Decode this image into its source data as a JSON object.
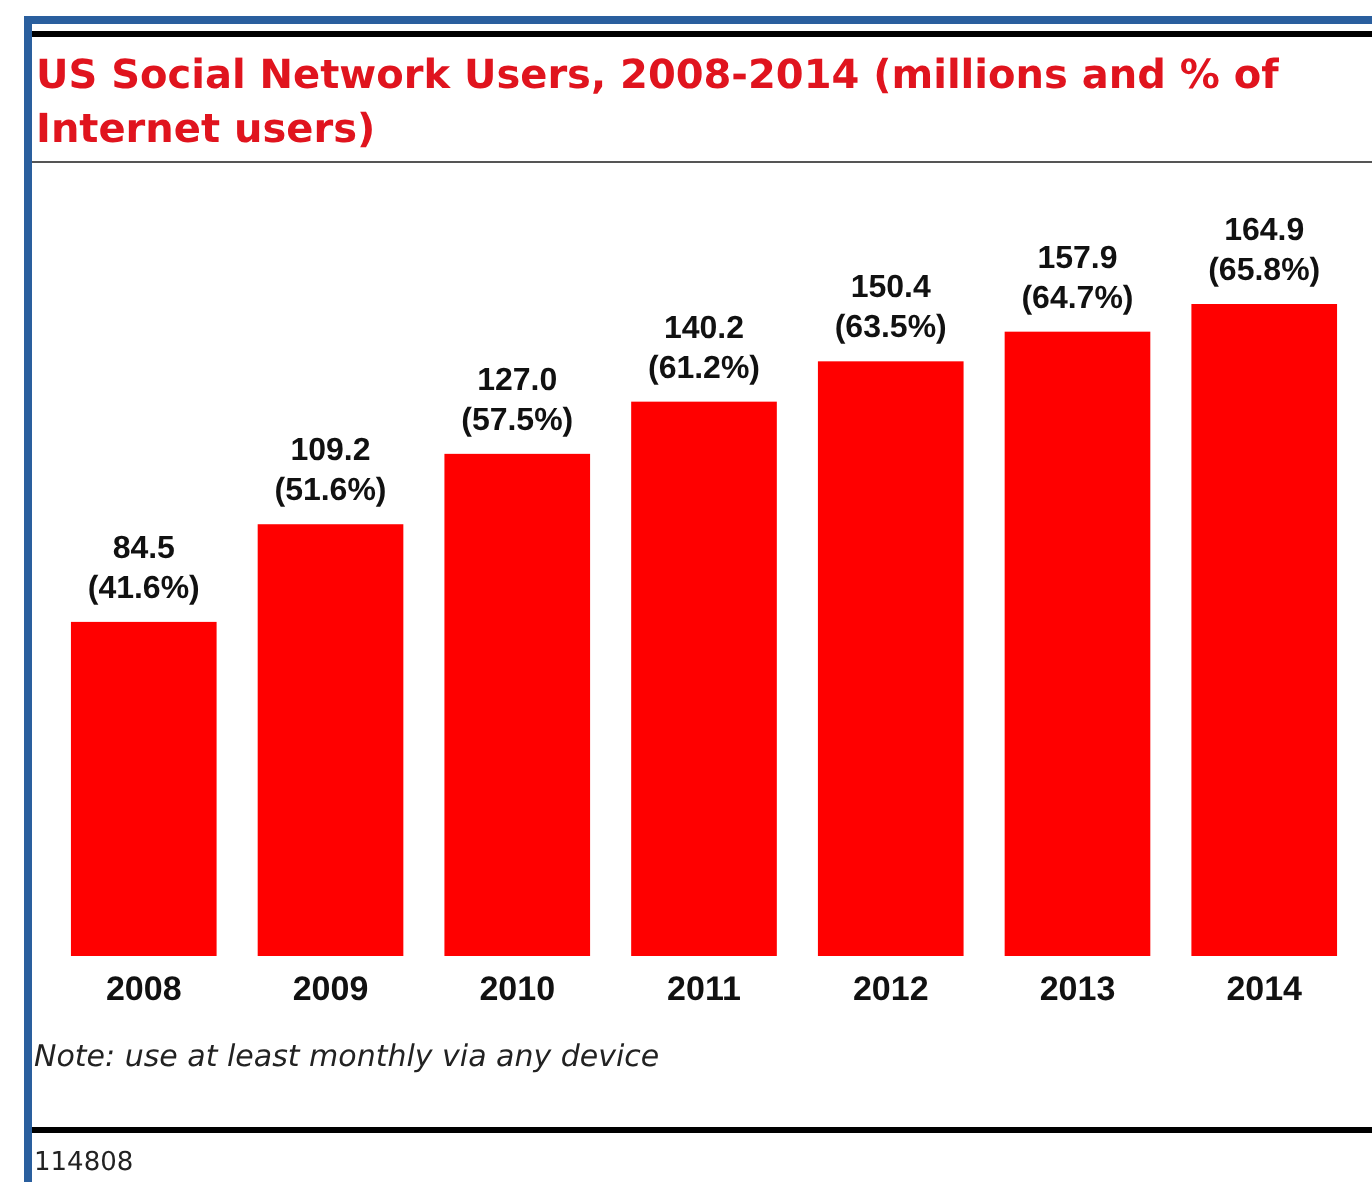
{
  "chart_data": {
    "type": "bar",
    "title": "US Social Network Users, 2008-2014 (millions and % of Internet users)",
    "categories": [
      "2008",
      "2009",
      "2010",
      "2011",
      "2012",
      "2013",
      "2014"
    ],
    "values": [
      84.5,
      109.2,
      127.0,
      140.2,
      150.4,
      157.9,
      164.9
    ],
    "value_labels": [
      "84.5\n(41.6%)",
      "109.2\n(51.6%)",
      "127.0\n(57.5%)",
      "140.2\n(61.2%)",
      "150.4\n(63.5%)",
      "157.9\n(64.7%)",
      "164.9\n(65.8%)"
    ],
    "color": "#ff0000",
    "annotations": [
      "Note: use at least monthly via any device",
      "114808"
    ]
  }
}
